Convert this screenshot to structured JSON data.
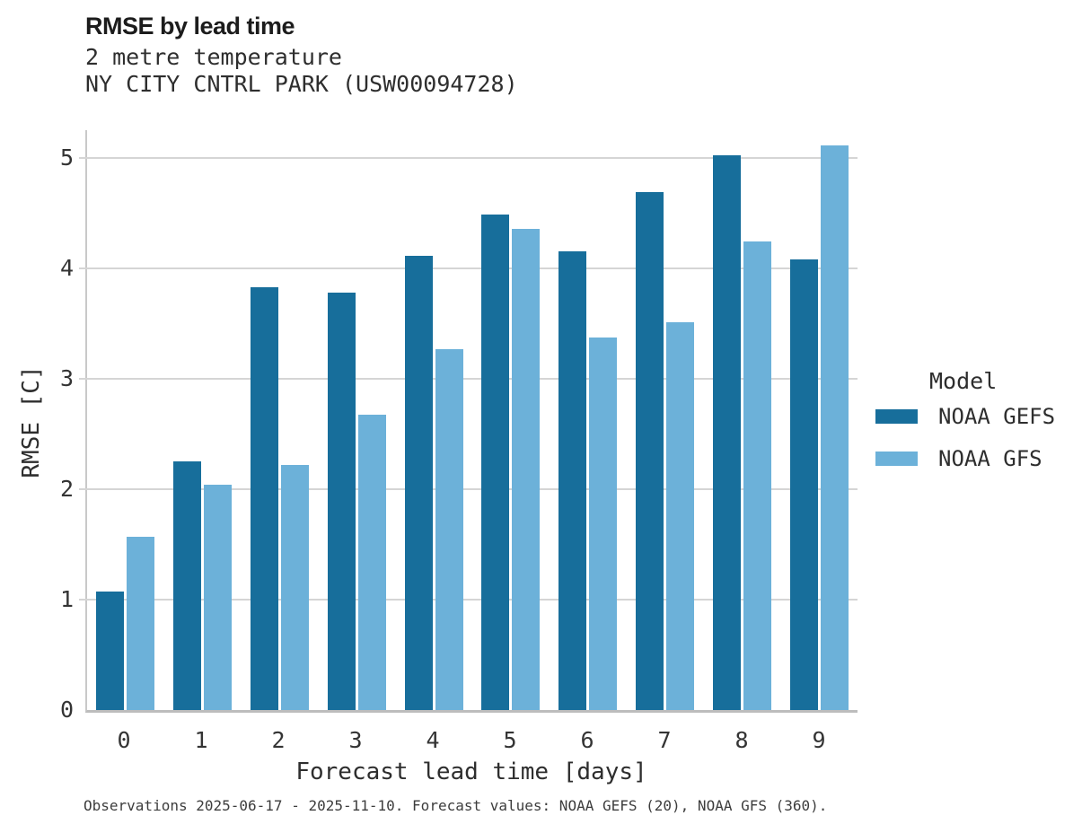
{
  "header": {
    "title": "RMSE by lead time",
    "subtitle_line1": "2 metre temperature",
    "subtitle_line2": "NY CITY CNTRL PARK (USW00094728)"
  },
  "chart_data": {
    "type": "bar",
    "title": "RMSE by lead time",
    "subtitle": [
      "2 metre temperature",
      "NY CITY CNTRL PARK (USW00094728)"
    ],
    "categories": [
      0,
      1,
      2,
      3,
      4,
      5,
      6,
      7,
      8,
      9
    ],
    "series": [
      {
        "name": "NOAA GEFS",
        "color": "#176e9b",
        "values": [
          1.07,
          2.25,
          3.83,
          3.78,
          4.11,
          4.49,
          4.15,
          4.69,
          5.02,
          4.08
        ]
      },
      {
        "name": "NOAA GFS",
        "color": "#6cb1d9",
        "values": [
          1.57,
          2.04,
          2.22,
          2.67,
          3.27,
          4.36,
          3.37,
          3.51,
          4.24,
          5.11
        ]
      }
    ],
    "xlabel": "Forecast lead time [days]",
    "ylabel": "RMSE [C]",
    "ylim": [
      0,
      5.25
    ],
    "yticks": [
      0,
      1,
      2,
      3,
      4,
      5
    ],
    "grid": "horizontal",
    "legend_title": "Model",
    "legend_position": "right",
    "colors": {
      "gridline": "#d5d5d5",
      "axis_spine": "#c9c9c9",
      "baseline": "#bdbdbd",
      "background": "#ffffff"
    }
  },
  "footer": {
    "note": "Observations 2025-06-17 - 2025-11-10. Forecast values: NOAA GEFS (20), NOAA GFS (360)."
  }
}
